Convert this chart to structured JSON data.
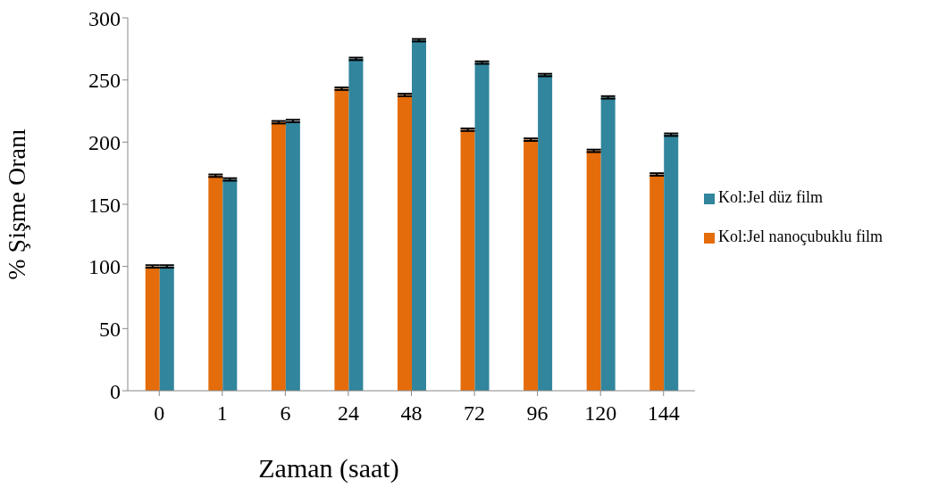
{
  "chart_data": {
    "type": "bar",
    "xlabel": "Zaman (saat)",
    "ylabel": "% Şişme Oranı",
    "categories": [
      "0",
      "1",
      "6",
      "24",
      "48",
      "72",
      "96",
      "120",
      "144"
    ],
    "series": [
      {
        "name": "Kol:Jel nanoçubuklu film",
        "color": "#e46c0a",
        "values": [
          100,
          173,
          216,
          243,
          238,
          210,
          202,
          193,
          174
        ],
        "errors": [
          1,
          1,
          1,
          1,
          1,
          1,
          1,
          1,
          1
        ]
      },
      {
        "name": "Kol:Jel düz film",
        "color": "#31859c",
        "values": [
          100,
          170,
          217,
          267,
          282,
          264,
          254,
          236,
          206
        ],
        "errors": [
          1,
          1,
          1,
          1,
          1,
          1,
          1,
          1,
          1
        ]
      }
    ],
    "ylim": [
      0,
      300
    ],
    "yticks": [
      0,
      50,
      100,
      150,
      200,
      250,
      300
    ],
    "grid": false,
    "legend": "right"
  }
}
